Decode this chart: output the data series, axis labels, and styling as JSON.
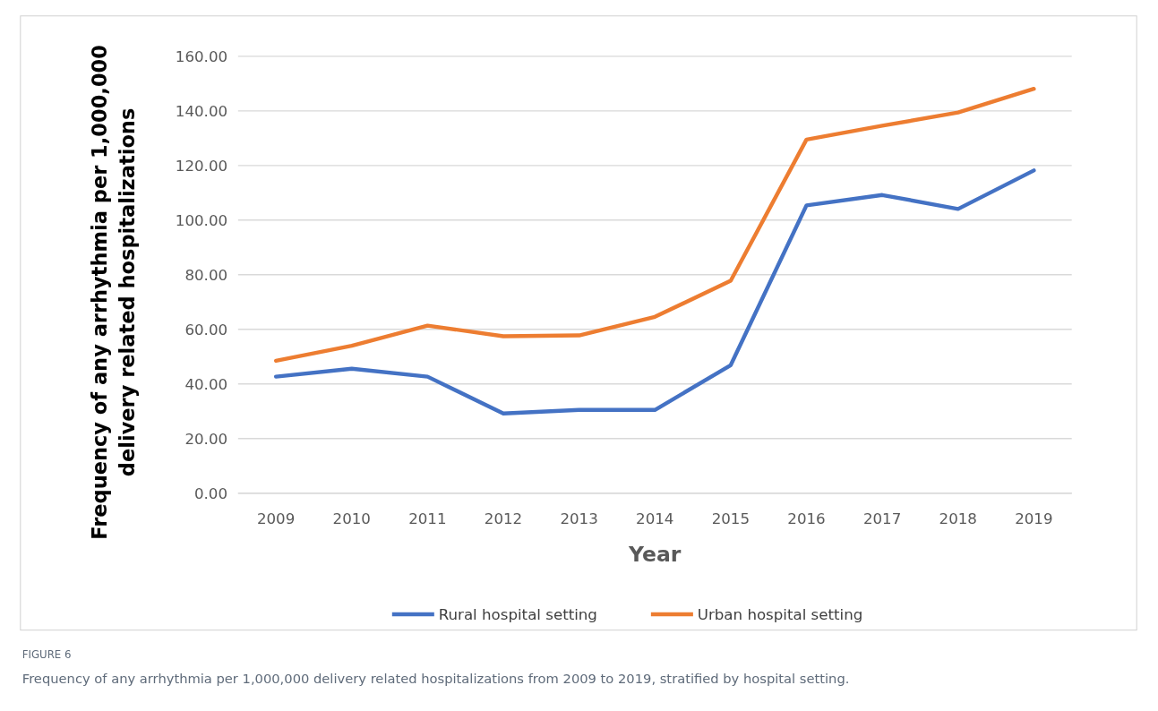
{
  "chart_data": {
    "type": "line",
    "xlabel": "Year",
    "ylabel": "Frequency of any arrhythmia per 1,000,000 delivery related hospitalizations",
    "categories": [
      "2009",
      "2010",
      "2011",
      "2012",
      "2013",
      "2014",
      "2015",
      "2016",
      "2017",
      "2018",
      "2019"
    ],
    "series": [
      {
        "name": "Rural hospital setting",
        "color": "#4472c4",
        "values": [
          42.7,
          45.6,
          42.7,
          29.2,
          30.5,
          30.5,
          46.9,
          105.4,
          109.2,
          104.1,
          118.2
        ]
      },
      {
        "name": "Urban hospital setting",
        "color": "#ed7d31",
        "values": [
          48.5,
          54.0,
          61.4,
          57.5,
          57.8,
          64.6,
          77.8,
          129.5,
          134.6,
          139.4,
          148.1
        ]
      }
    ],
    "ylim": [
      0,
      160
    ],
    "yticks": [
      {
        "value": 0,
        "label": "0.00"
      },
      {
        "value": 20,
        "label": "20.00"
      },
      {
        "value": 40,
        "label": "40.00"
      },
      {
        "value": 60,
        "label": "60.00"
      },
      {
        "value": 80,
        "label": "80.00"
      },
      {
        "value": 100,
        "label": "100.00"
      },
      {
        "value": 120,
        "label": "120.00"
      },
      {
        "value": 140,
        "label": "140.00"
      },
      {
        "value": 160,
        "label": "160.00"
      }
    ],
    "grid": "y",
    "legend": "bottom",
    "marker": "none",
    "line_style": "solid",
    "annotations": [
      "FIGURE 6",
      "Frequency of any arrhythmia per 1,000,000 delivery related hospitalizations from 2009 to 2019, stratified by hospital setting."
    ]
  }
}
